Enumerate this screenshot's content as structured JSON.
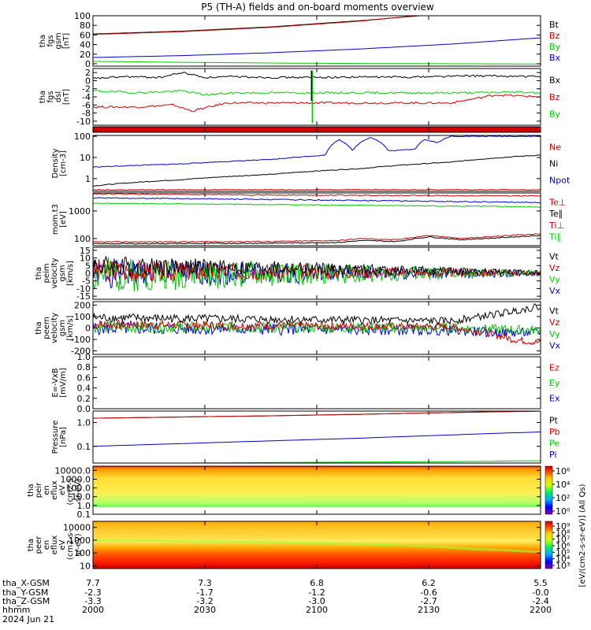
{
  "title": "P5 (TH-A) fields and on-board moments overview",
  "colors": {
    "black": "#000000",
    "red": "#cc0000",
    "green": "#00cc00",
    "blue": "#0000cc",
    "orange": "#ff8800"
  },
  "chart_data": {
    "type": "line",
    "title": "P5 (TH-A) fields and on-board moments overview",
    "x_tick_labels": [
      "2000",
      "2030",
      "2100",
      "2130",
      "2200"
    ],
    "x_rows": [
      {
        "label": "tha_X-GSM",
        "values": [
          "7.7",
          "7.3",
          "6.8",
          "6.2",
          "5.5"
        ]
      },
      {
        "label": "tha_Y-GSM",
        "values": [
          "-2.3",
          "-1.7",
          "-1.2",
          "-0.6",
          "-0.0"
        ]
      },
      {
        "label": "tha_Z-GSM",
        "values": [
          "-3.3",
          "-3.2",
          "-3.0",
          "-2.7",
          "-2.4"
        ]
      },
      {
        "label": "hhmm",
        "values": [
          "2000",
          "2030",
          "2100",
          "2130",
          "2200"
        ]
      }
    ],
    "date_label": "2024 Jun 21",
    "panels": [
      {
        "id": "fgs",
        "ylabel": [
          "tha",
          "fgs",
          "gsm",
          "[nT]"
        ],
        "ticks": [
          "0",
          "20",
          "40",
          "60",
          "80",
          "100"
        ],
        "ylim": [
          -5,
          100
        ],
        "legend": [
          {
            "t": "Bt",
            "c": "black"
          },
          {
            "t": "Bz",
            "c": "red"
          },
          {
            "t": "By",
            "c": "green"
          },
          {
            "t": "Bx",
            "c": "blue"
          }
        ],
        "series": [
          {
            "c": "black",
            "x": [
              0,
              0.2,
              0.4,
              0.6,
              0.73
            ],
            "y": [
              62,
              68,
              77,
              90,
              100
            ]
          },
          {
            "c": "red",
            "x": [
              0,
              0.2,
              0.4,
              0.6,
              0.72
            ],
            "y": [
              61,
              67,
              76,
              89,
              100
            ]
          },
          {
            "c": "blue",
            "x": [
              0,
              0.2,
              0.4,
              0.6,
              0.8,
              1
            ],
            "y": [
              13,
              17,
              23,
              31,
              41,
              54
            ]
          },
          {
            "c": "green",
            "x": [
              0,
              0.2,
              0.4,
              0.6,
              0.8,
              1
            ],
            "y": [
              5,
              3,
              1.5,
              0.5,
              0,
              -0.5
            ]
          }
        ]
      },
      {
        "id": "fgsdsl",
        "ylabel": [
          "tha",
          "fgs",
          "dsl",
          "[nT]"
        ],
        "ticks": [
          "-10",
          "-8",
          "-6",
          "-4",
          "-2",
          "0",
          "2"
        ],
        "ylim": [
          -11,
          3
        ],
        "legend": [
          {
            "t": "Bx",
            "c": "black"
          },
          {
            "t": "Bz",
            "c": "red"
          },
          {
            "t": "By",
            "c": "green"
          }
        ],
        "series": [
          {
            "c": "black",
            "x": [
              0,
              0.07,
              0.15,
              0.2,
              0.25,
              0.33,
              0.4,
              0.5,
              0.6,
              0.7,
              0.85,
              1
            ],
            "y": [
              0.5,
              1.0,
              0.8,
              2.0,
              0.8,
              1.0,
              0.8,
              0.8,
              0.9,
              0.9,
              1.2,
              1.0
            ]
          },
          {
            "c": "green",
            "x": [
              0,
              0.1,
              0.2,
              0.25,
              0.32,
              0.5,
              0.7,
              0.85,
              0.95,
              1
            ],
            "y": [
              -2.5,
              -3.0,
              -2.5,
              -3.5,
              -3.0,
              -3.0,
              -3.0,
              -3.0,
              -2.8,
              -3.0
            ]
          },
          {
            "c": "red",
            "x": [
              0,
              0.1,
              0.18,
              0.22,
              0.3,
              0.5,
              0.7,
              0.8,
              0.9,
              1
            ],
            "y": [
              -6.5,
              -6.5,
              -6.0,
              -7.5,
              -5.5,
              -5.5,
              -5.5,
              -5.5,
              -3.5,
              -4.0
            ]
          }
        ]
      },
      {
        "id": "mode",
        "ylabel": [],
        "ticks": [],
        "ylim": [
          0,
          1
        ],
        "legend": [],
        "series": []
      },
      {
        "id": "density",
        "ylabel": [
          "Density",
          "[cm-3]"
        ],
        "ticks": [
          "1",
          "10",
          "100"
        ],
        "ylim": [
          0.25,
          110
        ],
        "log": true,
        "legend": [
          {
            "t": "Ne",
            "c": "red"
          },
          {
            "t": "Ni",
            "c": "black"
          },
          {
            "t": "Npot",
            "c": "blue"
          }
        ],
        "series": [
          {
            "c": "black",
            "x": [
              0,
              0.2,
              0.4,
              0.6,
              0.8,
              1
            ],
            "y": [
              0.45,
              0.9,
              1.6,
              3,
              6,
              13
            ]
          },
          {
            "c": "blue",
            "x": [
              0,
              0.2,
              0.4,
              0.52,
              0.55,
              0.58,
              0.62,
              0.66,
              0.72,
              0.74,
              0.77,
              0.8,
              0.85,
              0.88
            ],
            "y": [
              3.5,
              5,
              8,
              13,
              70,
              20,
              90,
              20,
              25,
              70,
              50,
              100,
              100,
              100
            ]
          },
          {
            "c": "red",
            "x": [
              0,
              0.2,
              0.4,
              0.6,
              0.8,
              1
            ],
            "y": [
              0.3,
              0.3,
              0.3,
              0.3,
              0.3,
              0.3
            ]
          }
        ]
      },
      {
        "id": "temp",
        "ylabel": [
          "mom.t3",
          "[eV]"
        ],
        "ticks": [
          "100",
          "1000"
        ],
        "ylim": [
          55,
          4500
        ],
        "log": true,
        "legend": [
          {
            "t": "Te⊥",
            "c": "red"
          },
          {
            "t": "Te∥",
            "c": "black"
          },
          {
            "t": "Ti⊥",
            "c": "red"
          },
          {
            "t": "Ti∥",
            "c": "green"
          }
        ],
        "series": [
          {
            "c": "red",
            "x": [
              0,
              0.2,
              0.4,
              0.6,
              0.8,
              1
            ],
            "y": [
              4200,
              3900,
              3800,
              3700,
              3600,
              3500
            ]
          },
          {
            "c": "blue",
            "x": [
              0,
              0.2,
              0.4,
              0.6,
              0.8,
              1
            ],
            "y": [
              3000,
              2800,
              2600,
              2400,
              2200,
              2000
            ]
          },
          {
            "c": "green",
            "x": [
              0,
              0.2,
              0.4,
              0.6,
              0.8,
              1
            ],
            "y": [
              1900,
              1800,
              1700,
              1600,
              1500,
              1400
            ]
          },
          {
            "c": "red",
            "x": [
              0,
              0.2,
              0.4,
              0.55,
              0.6,
              0.68,
              0.75,
              0.82,
              0.9,
              1
            ],
            "y": [
              75,
              76,
              78,
              85,
              100,
              90,
              130,
              100,
              120,
              150
            ]
          },
          {
            "c": "black",
            "x": [
              0,
              0.2,
              0.4,
              0.55,
              0.6,
              0.68,
              0.75,
              0.82,
              0.9,
              1
            ],
            "y": [
              65,
              66,
              68,
              72,
              85,
              78,
              115,
              90,
              105,
              130
            ]
          }
        ]
      },
      {
        "id": "peim",
        "ylabel": [
          "tha",
          "peim",
          "velocity",
          "gsm",
          "[km/s]"
        ],
        "ticks": [
          "-15",
          "-10",
          "-5",
          "0",
          "5",
          "10",
          "15"
        ],
        "ylim": [
          -17,
          17
        ],
        "noise": true,
        "legend": [
          {
            "t": "Vt",
            "c": "black"
          },
          {
            "t": "Vz",
            "c": "red"
          },
          {
            "t": "Vy",
            "c": "green"
          },
          {
            "t": "Vx",
            "c": "blue"
          }
        ],
        "series": [
          {
            "c": "blue",
            "x": [
              0,
              1
            ],
            "y": [
              0,
              0
            ],
            "amp": [
              10,
              2
            ],
            "seed": 1
          },
          {
            "c": "green",
            "x": [
              0,
              1
            ],
            "y": [
              -1,
              0
            ],
            "amp": [
              12,
              2
            ],
            "seed": 2
          },
          {
            "c": "red",
            "x": [
              0,
              1
            ],
            "y": [
              2,
              0
            ],
            "amp": [
              8,
              1.5
            ],
            "seed": 3
          },
          {
            "c": "black",
            "x": [
              0,
              1
            ],
            "y": [
              5,
              0.5
            ],
            "amp": [
              7,
              1.5
            ],
            "seed": 4
          }
        ]
      },
      {
        "id": "peem",
        "ylabel": [
          "tha",
          "peem",
          "velocity",
          "gsm",
          "[km/s]"
        ],
        "ticks": [
          "-200",
          "-100",
          "0",
          "100",
          "200"
        ],
        "ylim": [
          -230,
          230
        ],
        "noise": true,
        "legend": [
          {
            "t": "Vt",
            "c": "black"
          },
          {
            "t": "Vz",
            "c": "red"
          },
          {
            "t": "Vy",
            "c": "green"
          },
          {
            "t": "Vx",
            "c": "blue"
          }
        ],
        "series": [
          {
            "c": "blue",
            "x": [
              0,
              0.8,
              0.9,
              1
            ],
            "y": [
              0,
              -20,
              -40,
              -40
            ],
            "amp": [
              60,
              40
            ],
            "seed": 5
          },
          {
            "c": "green",
            "x": [
              0,
              0.8,
              0.9,
              1
            ],
            "y": [
              10,
              0,
              -10,
              -20
            ],
            "amp": [
              50,
              40
            ],
            "seed": 6
          },
          {
            "c": "red",
            "x": [
              0,
              0.8,
              0.88,
              0.94,
              1
            ],
            "y": [
              30,
              10,
              -40,
              -100,
              -130
            ],
            "amp": [
              40,
              30
            ],
            "seed": 7
          },
          {
            "c": "black",
            "x": [
              0,
              0.8,
              0.9,
              1
            ],
            "y": [
              90,
              60,
              120,
              190
            ],
            "amp": [
              40,
              30
            ],
            "seed": 8
          }
        ]
      },
      {
        "id": "efield",
        "ylabel": [
          "E=-VxB",
          "[mV/m]"
        ],
        "ticks": [
          "0.0",
          "0.2",
          "0.4",
          "0.6",
          "0.8",
          "1.0"
        ],
        "ylim": [
          0,
          1
        ],
        "legend": [
          {
            "t": "Ez",
            "c": "red"
          },
          {
            "t": "Ey",
            "c": "green"
          },
          {
            "t": "Ex",
            "c": "blue"
          }
        ],
        "series": []
      },
      {
        "id": "pressure",
        "ylabel": [
          "Pressure",
          "[nPa]"
        ],
        "ticks": [
          "0.1",
          "1.0"
        ],
        "ylim": [
          0.02,
          3
        ],
        "log": true,
        "legend": [
          {
            "t": "Pt",
            "c": "black"
          },
          {
            "t": "Pb",
            "c": "red"
          },
          {
            "t": "Pe",
            "c": "green"
          },
          {
            "t": "Pi",
            "c": "blue"
          }
        ],
        "series": [
          {
            "c": "black",
            "x": [
              0,
              0.2,
              0.4,
              0.6,
              0.8,
              1
            ],
            "y": [
              1.5,
              1.7,
              1.9,
              2.2,
              2.6,
              3.0
            ]
          },
          {
            "c": "red",
            "x": [
              0,
              0.2,
              0.4,
              0.6,
              0.8,
              1
            ],
            "y": [
              1.5,
              1.7,
              1.9,
              2.2,
              2.6,
              3.0
            ]
          },
          {
            "c": "blue",
            "x": [
              0,
              0.2,
              0.4,
              0.6,
              0.8,
              1
            ],
            "y": [
              0.1,
              0.13,
              0.17,
              0.22,
              0.3,
              0.4
            ]
          },
          {
            "c": "green",
            "x": [
              0,
              0.2,
              0.4,
              0.6,
              0.8,
              1
            ],
            "y": [
              0.02,
              0.02,
              0.021,
              0.022,
              0.023,
              0.025
            ]
          }
        ]
      },
      {
        "id": "peir",
        "ylabel": [
          "tha",
          "peir",
          "en",
          "eflux",
          "eV",
          "(cm2-s-",
          "sr-eV)"
        ],
        "ticks": [
          "0.1",
          "1.0",
          "10.0",
          "100.0",
          "1000.0",
          "10000.0"
        ],
        "ylim": [
          0.1,
          30000
        ],
        "log": true,
        "spec": "ion",
        "legend": [],
        "series": []
      },
      {
        "id": "peer",
        "ylabel": [
          "tha",
          "peer",
          "en",
          "eflux",
          "eV",
          "(cm2-s-",
          "sr-eV)"
        ],
        "ticks": [
          "10",
          "100",
          "1000",
          "10000"
        ],
        "ylim": [
          6,
          30000
        ],
        "log": true,
        "spec": "ele",
        "legend": [],
        "series": []
      }
    ],
    "colorbar": {
      "label": "[eV/(cm2-s-sr-eV)] (All Qs)",
      "ticks_ion": [
        "10⁶",
        "10⁴",
        "10²",
        "10⁰"
      ],
      "ticks_ele": [
        "10⁹",
        "10⁸",
        "10⁷",
        "10⁶",
        "10⁵",
        "10⁴",
        "10³"
      ]
    }
  }
}
